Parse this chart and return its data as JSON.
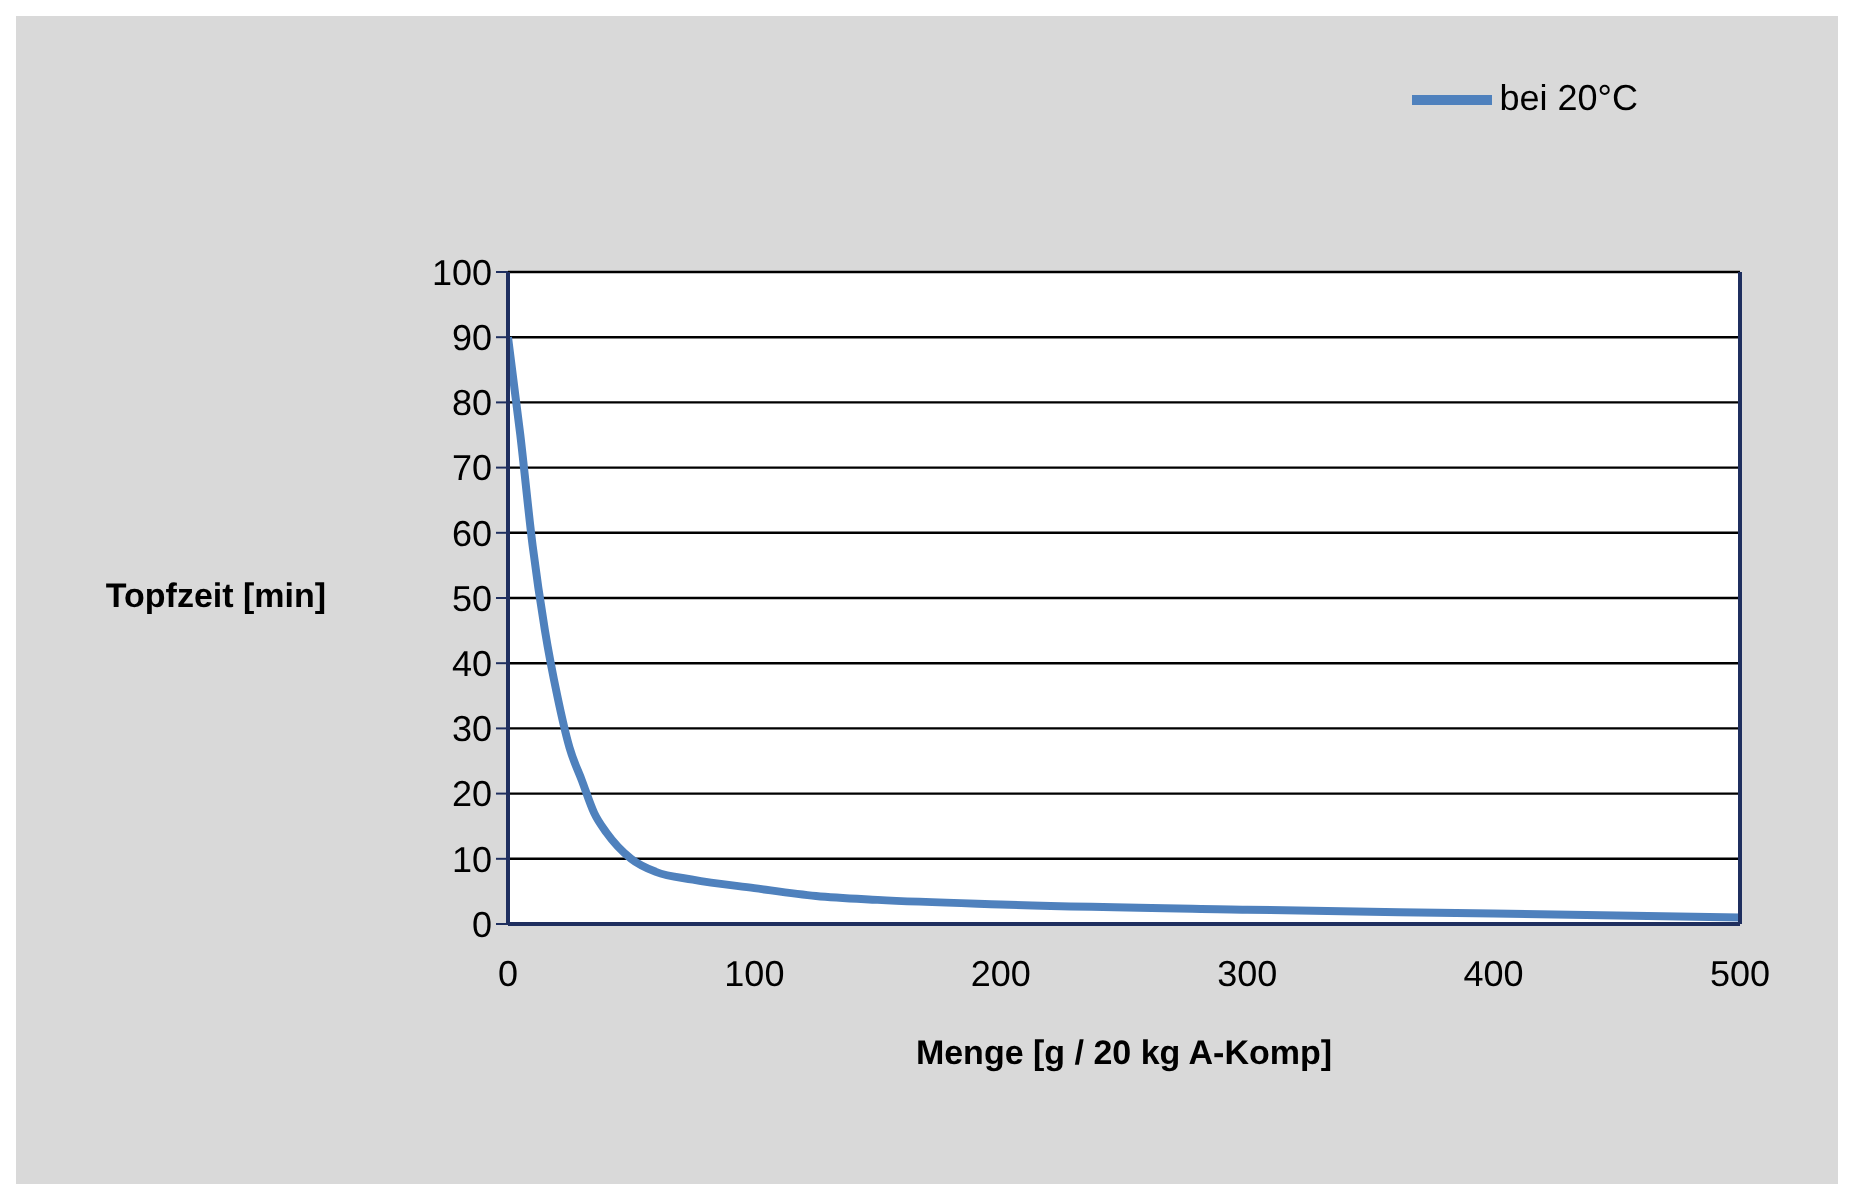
{
  "chart_data": {
    "type": "line",
    "xlabel": "Menge [g / 20 kg A-Komp]",
    "ylabel": "Topfzeit [min]",
    "x": [
      0,
      5,
      10,
      15,
      20,
      25,
      30,
      35,
      40,
      50,
      60,
      75,
      100,
      125,
      150,
      200,
      300,
      400,
      500
    ],
    "series": [
      {
        "name": "bei 20°C",
        "color": "#4f81bd",
        "values": [
          90,
          75,
          58,
          45,
          35,
          27,
          22,
          17,
          14,
          10,
          8,
          6.8,
          5.5,
          4.3,
          3.7,
          3,
          2.2,
          1.6,
          1
        ]
      }
    ],
    "xlim": [
      0,
      500
    ],
    "xticks": [
      0,
      100,
      200,
      300,
      400,
      500
    ],
    "ylim": [
      0,
      100
    ],
    "yticks": [
      0,
      10,
      20,
      30,
      40,
      50,
      60,
      70,
      80,
      90,
      100
    ],
    "grid": "y",
    "legend": "top right",
    "marker": "none",
    "line_style": "solid"
  }
}
